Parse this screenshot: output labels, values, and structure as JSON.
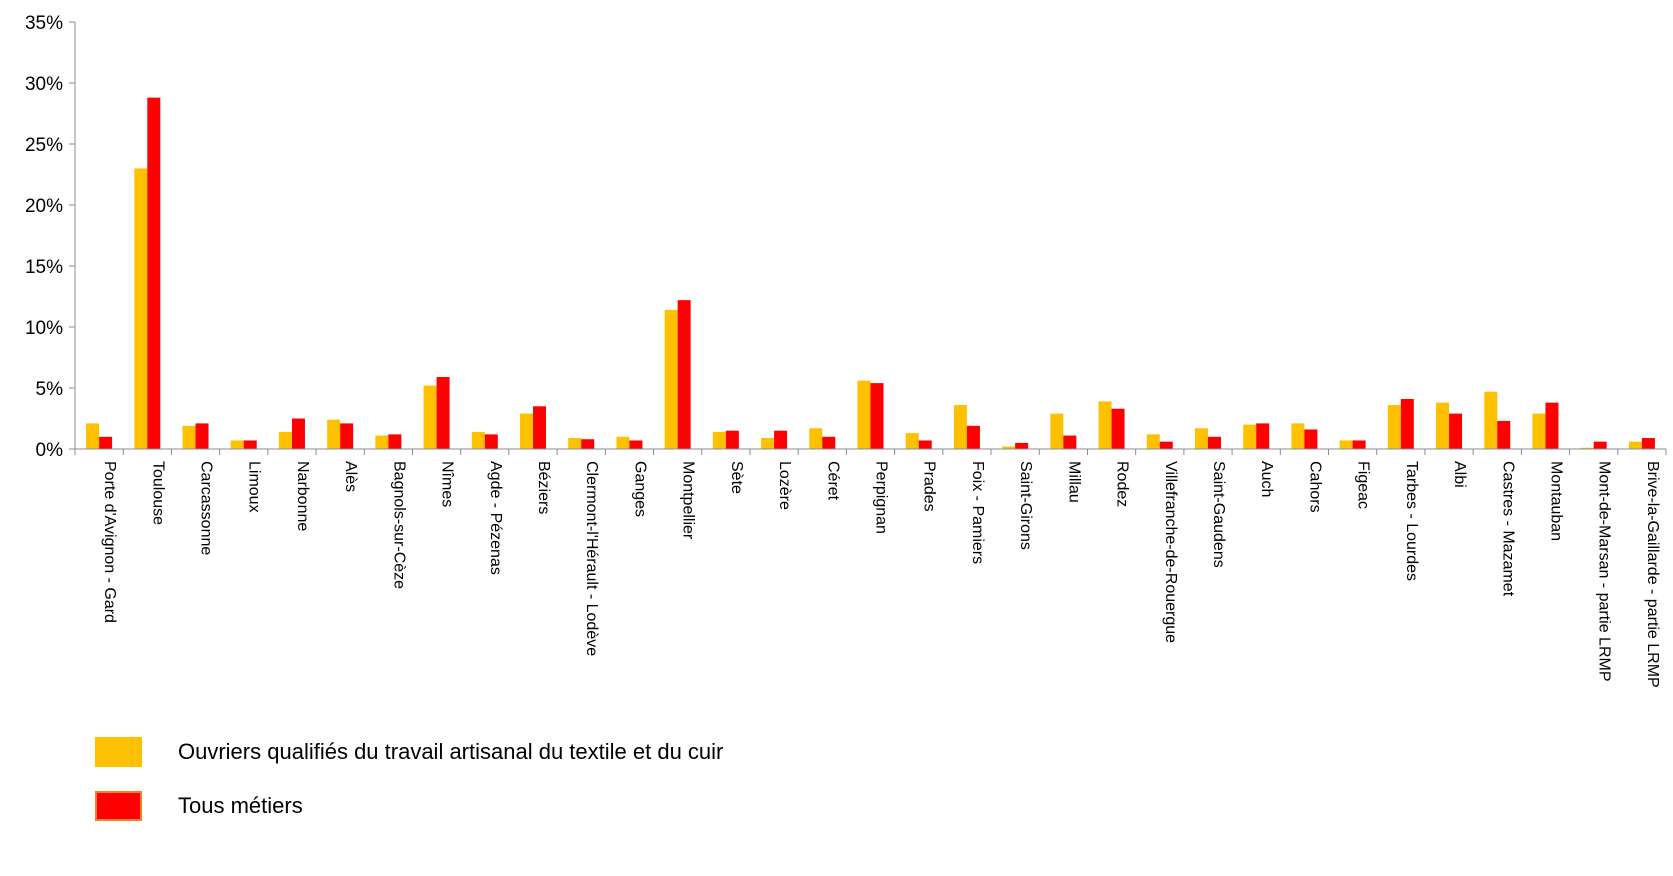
{
  "chart_data": {
    "type": "bar",
    "categories": [
      "Porte d'Avignon - Gard",
      "Toulouse",
      "Carcassonne",
      "Limoux",
      "Narbonne",
      "Alès",
      "Bagnols-sur-Cèze",
      "Nîmes",
      "Agde - Pézenas",
      "Béziers",
      "Clermont-l'Hérault - Lodève",
      "Ganges",
      "Montpellier",
      "Sète",
      "Lozère",
      "Céret",
      "Perpignan",
      "Prades",
      "Foix - Pamiers",
      "Saint-Girons",
      "Millau",
      "Rodez",
      "Villefranche-de-Rouergue",
      "Saint-Gaudens",
      "Auch",
      "Cahors",
      "Figeac",
      "Tarbes - Lourdes",
      "Albi",
      "Castres - Mazamet",
      "Montauban",
      "Mont-de-Marsan - partie LRMP",
      "Brive-la-Gaillarde - partie LRMP"
    ],
    "series": [
      {
        "name": "Ouvriers qualifiés du travail artisanal du textile et du cuir",
        "color": "#FFC000",
        "values": [
          2.1,
          23.0,
          1.9,
          0.7,
          1.4,
          2.4,
          1.1,
          5.2,
          1.4,
          2.9,
          0.9,
          1.0,
          11.4,
          1.4,
          0.9,
          1.7,
          5.6,
          1.3,
          3.6,
          0.2,
          2.9,
          3.9,
          1.2,
          1.7,
          2.0,
          2.1,
          0.7,
          3.6,
          3.8,
          4.7,
          2.9,
          0.1,
          0.6
        ]
      },
      {
        "name": "Tous métiers",
        "color": "#FF0000",
        "values": [
          1.0,
          28.8,
          2.1,
          0.7,
          2.5,
          2.1,
          1.2,
          5.9,
          1.2,
          3.5,
          0.8,
          0.7,
          12.2,
          1.5,
          1.5,
          1.0,
          5.4,
          0.7,
          1.9,
          0.5,
          1.1,
          3.3,
          0.6,
          1.0,
          2.1,
          1.6,
          0.7,
          4.1,
          2.9,
          2.3,
          3.8,
          0.6,
          0.9
        ]
      }
    ],
    "ylim": [
      0,
      35
    ],
    "yticks": [
      "0%",
      "5%",
      "10%",
      "15%",
      "20%",
      "25%",
      "30%",
      "35%"
    ],
    "grid": false,
    "legend_position": "bottom-left"
  }
}
